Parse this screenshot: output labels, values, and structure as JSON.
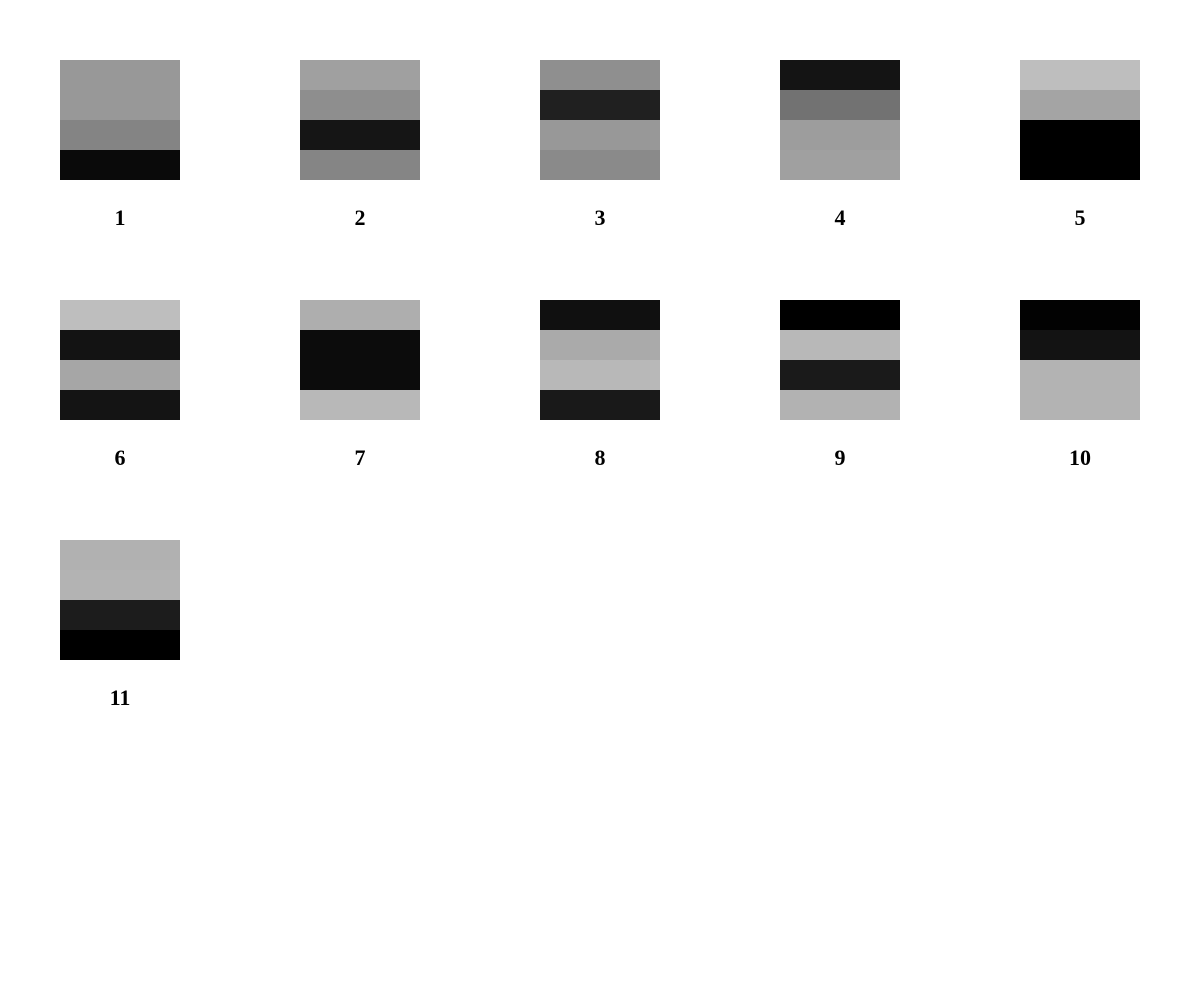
{
  "tiles": [
    {
      "label": "1",
      "bands": [
        "#989898",
        "#989898",
        "#848484",
        "#0a0a0a"
      ]
    },
    {
      "label": "2",
      "bands": [
        "#a0a0a0",
        "#8e8e8e",
        "#151515",
        "#858585"
      ]
    },
    {
      "label": "3",
      "bands": [
        "#8f8f8f",
        "#202020",
        "#989898",
        "#8a8a8a"
      ]
    },
    {
      "label": "4",
      "bands": [
        "#141414",
        "#727272",
        "#9d9d9d",
        "#a0a0a0"
      ]
    },
    {
      "label": "5",
      "bands": [
        "#bebebe",
        "#a4a4a4",
        "#000000",
        "#000000"
      ]
    },
    {
      "label": "6",
      "bands": [
        "#bebebe",
        "#131313",
        "#a6a6a6",
        "#141414"
      ]
    },
    {
      "label": "7",
      "bands": [
        "#aeaeae",
        "#0c0c0c",
        "#0c0c0c",
        "#b8b8b8"
      ]
    },
    {
      "label": "8",
      "bands": [
        "#101010",
        "#aaaaaa",
        "#b8b8b8",
        "#191919"
      ]
    },
    {
      "label": "9",
      "bands": [
        "#000000",
        "#b8b8b8",
        "#1a1a1a",
        "#b2b2b2"
      ]
    },
    {
      "label": "10",
      "bands": [
        "#020202",
        "#131313",
        "#b3b3b3",
        "#b3b3b3"
      ]
    },
    {
      "label": "11",
      "bands": [
        "#b1b1b1",
        "#b3b3b3",
        "#1c1c1c",
        "#000000"
      ]
    }
  ]
}
